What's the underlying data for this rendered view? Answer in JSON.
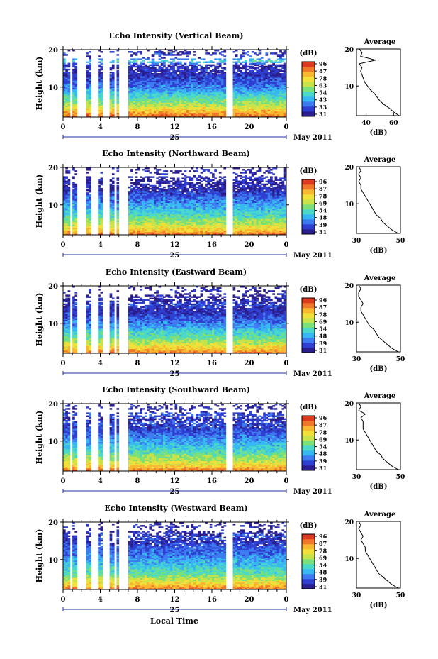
{
  "colors": {
    "colormap": [
      "#2b1f8f",
      "#2f3fd2",
      "#3d7cf0",
      "#38b8f2",
      "#4ad9c8",
      "#7be07a",
      "#c8e34a",
      "#f2e03a",
      "#f7b830",
      "#f0782a",
      "#de3a22"
    ],
    "profile_line": "#000000",
    "axis": "#000000",
    "time_bar": "#1f2fa8"
  },
  "figure": {
    "x_title": "Local Time",
    "date_day": "25",
    "date_month": "May 2011",
    "colorbar_unit": "(dB)",
    "colorbar_ticks": [
      "96",
      "87",
      "78",
      "69",
      "54",
      "48",
      "39",
      "31"
    ],
    "colorbar_ticks_alt": [
      "96",
      "87",
      "78",
      "63",
      "54",
      "43",
      "33",
      "31"
    ],
    "profile_title": "Average",
    "profile_xlabel": "(dB)",
    "y_label": "Height (km)"
  },
  "chart_data": [
    {
      "type": "heatmap",
      "title": "Echo Intensity (Vertical Beam)",
      "ylabel": "Height (km)",
      "xlabel": "Local Time",
      "xlim": [
        0,
        24
      ],
      "ylim": [
        2,
        20
      ],
      "xticks": [
        "0",
        "4",
        "8",
        "12",
        "16",
        "20",
        "0"
      ],
      "yticks": [
        "10",
        "20"
      ],
      "colorbar": {
        "unit": "(dB)",
        "ticks": [
          "96",
          "87",
          "78",
          "63",
          "54",
          "43",
          "33",
          "31"
        ]
      },
      "data_gaps_hours": [
        [
          0.7,
          1.0
        ],
        [
          1.5,
          2.4
        ],
        [
          2.9,
          3.8
        ],
        [
          4.3,
          4.9
        ],
        [
          5.4,
          5.8
        ],
        [
          6.1,
          6.4
        ],
        [
          6.6,
          7.0
        ],
        [
          7.4,
          7.6
        ],
        [
          17.5,
          18.2
        ]
      ],
      "profile": {
        "title": "Average",
        "xlabel": "(dB)",
        "xticks": [
          "40",
          "60"
        ],
        "xlim": [
          33,
          65
        ],
        "heights_km": [
          2,
          3,
          4,
          5,
          6,
          7,
          8,
          9,
          10,
          11,
          12,
          13,
          14,
          15,
          16,
          17,
          18,
          19,
          20
        ],
        "values_db": [
          64,
          60,
          57,
          53,
          50,
          48,
          46,
          43,
          41,
          39,
          38,
          37,
          36,
          37,
          35,
          47,
          36,
          37,
          35
        ]
      }
    },
    {
      "type": "heatmap",
      "title": "Echo Intensity (Northward Beam)",
      "ylabel": "Height (km)",
      "xlabel": "Local Time",
      "xlim": [
        0,
        24
      ],
      "ylim": [
        2,
        20
      ],
      "xticks": [
        "0",
        "4",
        "8",
        "12",
        "16",
        "20",
        "0"
      ],
      "yticks": [
        "10",
        "20"
      ],
      "colorbar": {
        "unit": "(dB)",
        "ticks": [
          "96",
          "87",
          "78",
          "69",
          "54",
          "48",
          "39",
          "31"
        ]
      },
      "data_gaps_hours": [
        [
          0.7,
          1.0
        ],
        [
          1.5,
          2.4
        ],
        [
          2.9,
          3.8
        ],
        [
          4.3,
          4.9
        ],
        [
          5.4,
          5.8
        ],
        [
          6.1,
          6.4
        ],
        [
          6.6,
          7.0
        ],
        [
          7.4,
          7.6
        ],
        [
          17.5,
          18.2
        ]
      ],
      "profile": {
        "title": "Average",
        "xlabel": "(dB)",
        "xticks": [
          "30",
          "50"
        ],
        "xlim": [
          30,
          50
        ],
        "heights_km": [
          2,
          3,
          4,
          5,
          6,
          7,
          8,
          9,
          10,
          11,
          12,
          13,
          14,
          15,
          16,
          17,
          18,
          19,
          20
        ],
        "values_db": [
          49,
          46,
          44,
          42,
          41,
          39,
          38,
          37,
          36,
          35,
          34,
          33,
          32,
          32,
          31,
          32,
          31,
          32,
          31
        ]
      }
    },
    {
      "type": "heatmap",
      "title": "Echo Intensity (Eastward Beam)",
      "ylabel": "Height (km)",
      "xlabel": "Local Time",
      "xlim": [
        0,
        24
      ],
      "ylim": [
        2,
        20
      ],
      "xticks": [
        "0",
        "4",
        "8",
        "12",
        "16",
        "20",
        "0"
      ],
      "yticks": [
        "10",
        "20"
      ],
      "colorbar": {
        "unit": "(dB)",
        "ticks": [
          "96",
          "87",
          "78",
          "69",
          "54",
          "48",
          "39",
          "31"
        ]
      },
      "data_gaps_hours": [
        [
          0.7,
          1.0
        ],
        [
          1.5,
          2.4
        ],
        [
          2.9,
          3.8
        ],
        [
          4.3,
          4.9
        ],
        [
          5.4,
          5.8
        ],
        [
          6.1,
          6.4
        ],
        [
          6.6,
          7.0
        ],
        [
          7.4,
          7.6
        ],
        [
          17.5,
          18.2
        ]
      ],
      "profile": {
        "title": "Average",
        "xlabel": "(dB)",
        "xticks": [
          "30",
          "50"
        ],
        "xlim": [
          30,
          50
        ],
        "heights_km": [
          2,
          3,
          4,
          5,
          6,
          7,
          8,
          9,
          10,
          11,
          12,
          13,
          14,
          15,
          16,
          17,
          18,
          19,
          20
        ],
        "values_db": [
          49,
          46,
          44,
          42,
          40,
          39,
          38,
          36,
          35,
          34,
          33,
          32,
          32,
          33,
          32,
          31,
          31,
          32,
          31
        ]
      }
    },
    {
      "type": "heatmap",
      "title": "Echo Intensity (Southward Beam)",
      "ylabel": "Height (km)",
      "xlabel": "Local Time",
      "xlim": [
        0,
        24
      ],
      "ylim": [
        2,
        20
      ],
      "xticks": [
        "0",
        "4",
        "8",
        "12",
        "16",
        "20",
        "0"
      ],
      "yticks": [
        "10",
        "20"
      ],
      "colorbar": {
        "unit": "(dB)",
        "ticks": [
          "96",
          "87",
          "78",
          "69",
          "54",
          "48",
          "39",
          "31"
        ]
      },
      "data_gaps_hours": [
        [
          0.7,
          1.0
        ],
        [
          1.5,
          2.4
        ],
        [
          2.9,
          3.8
        ],
        [
          4.3,
          4.9
        ],
        [
          5.4,
          5.8
        ],
        [
          6.1,
          6.4
        ],
        [
          6.6,
          7.0
        ],
        [
          7.4,
          7.6
        ],
        [
          17.5,
          18.2
        ]
      ],
      "profile": {
        "title": "Average",
        "xlabel": "(dB)",
        "xticks": [
          "30",
          "50"
        ],
        "xlim": [
          30,
          50
        ],
        "heights_km": [
          2,
          3,
          4,
          5,
          6,
          7,
          8,
          9,
          10,
          11,
          12,
          13,
          14,
          15,
          16,
          17,
          18,
          19,
          20
        ],
        "values_db": [
          49,
          46,
          44,
          42,
          41,
          39,
          38,
          37,
          36,
          35,
          34,
          33,
          33,
          33,
          32,
          34,
          31,
          32,
          31
        ]
      }
    },
    {
      "type": "heatmap",
      "title": "Echo Intensity (Westward Beam)",
      "ylabel": "Height (km)",
      "xlabel": "Local Time",
      "xlim": [
        0,
        24
      ],
      "ylim": [
        2,
        20
      ],
      "xticks": [
        "0",
        "4",
        "8",
        "12",
        "16",
        "20",
        "0"
      ],
      "yticks": [
        "10",
        "20"
      ],
      "colorbar": {
        "unit": "(dB)",
        "ticks": [
          "96",
          "87",
          "78",
          "69",
          "54",
          "48",
          "39",
          "31"
        ]
      },
      "data_gaps_hours": [
        [
          0.7,
          1.0
        ],
        [
          1.5,
          2.4
        ],
        [
          2.9,
          3.8
        ],
        [
          4.3,
          4.9
        ],
        [
          5.4,
          5.8
        ],
        [
          6.1,
          6.4
        ],
        [
          6.6,
          7.0
        ],
        [
          7.4,
          7.6
        ],
        [
          17.5,
          18.2
        ]
      ],
      "profile": {
        "title": "Average",
        "xlabel": "(dB)",
        "xticks": [
          "30",
          "50"
        ],
        "xlim": [
          30,
          50
        ],
        "heights_km": [
          2,
          3,
          4,
          5,
          6,
          7,
          8,
          9,
          10,
          11,
          12,
          13,
          14,
          15,
          16,
          17,
          18,
          19,
          20
        ],
        "values_db": [
          49,
          46,
          44,
          42,
          40,
          39,
          38,
          37,
          36,
          35,
          34,
          34,
          33,
          32,
          33,
          32,
          31,
          32,
          31
        ]
      }
    }
  ]
}
